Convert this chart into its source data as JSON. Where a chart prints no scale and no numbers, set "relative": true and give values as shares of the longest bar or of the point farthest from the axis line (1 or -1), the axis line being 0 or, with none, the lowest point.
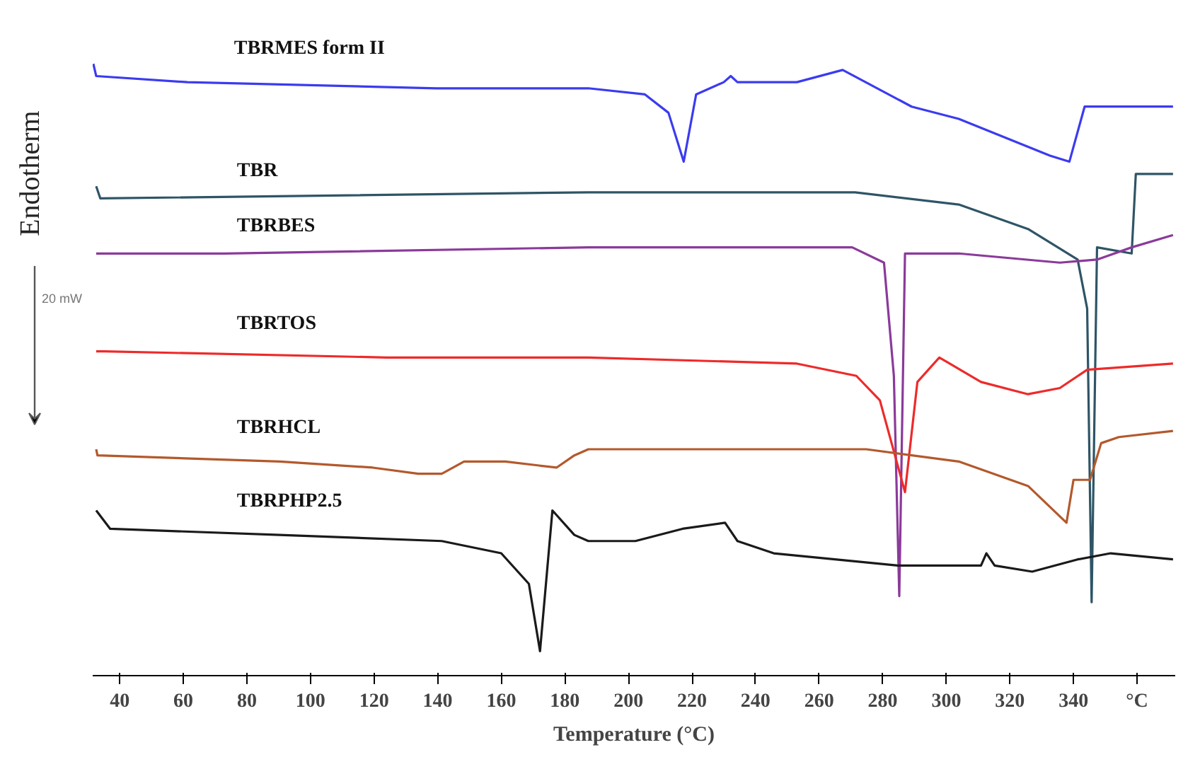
{
  "chart_data": {
    "type": "line",
    "relative": true,
    "xlabel": "Temperature (°C)",
    "ylabel": "Endotherm",
    "annotations": [
      "20 mW"
    ],
    "xlim": [
      31.5,
      372
    ],
    "xticks": [
      40,
      60,
      80,
      100,
      120,
      140,
      160,
      180,
      200,
      220,
      240,
      260,
      280,
      300,
      320,
      340,
      {
        "value": 360,
        "label": "°C"
      }
    ],
    "line_style": "solid",
    "series": [
      {
        "name": "TBRMES form II",
        "color": "#3b3bf0",
        "x": [
          31.7,
          32.6,
          61.3,
          139.6,
          187.4,
          205.2,
          212.6,
          217.4,
          221.3,
          230,
          232.2,
          234.3,
          253,
          267.4,
          289.1,
          303.9,
          332.6,
          338.7,
          343.5,
          354.3,
          371.3
        ],
        "values": [
          1.0,
          0.98,
          0.97,
          0.96,
          0.96,
          0.95,
          0.92,
          0.84,
          0.95,
          0.97,
          0.98,
          0.97,
          0.97,
          0.99,
          0.93,
          0.91,
          0.85,
          0.84,
          0.93,
          0.93,
          0.93
        ]
      },
      {
        "name": "TBR",
        "color": "#2e5566",
        "x": [
          32.6,
          33.9,
          187.4,
          271.3,
          303.9,
          325.7,
          341.3,
          344.3,
          345.7,
          347.4,
          358.3,
          359.6,
          371.3
        ],
        "values": [
          0.8,
          0.78,
          0.79,
          0.79,
          0.77,
          0.73,
          0.68,
          0.6,
          0.12,
          0.7,
          0.69,
          0.82,
          0.82
        ]
      },
      {
        "name": "TBRBES",
        "color": "#8b3a9a",
        "x": [
          32.6,
          39.6,
          73,
          187.4,
          270.4,
          280.4,
          283.5,
          285.2,
          287,
          303.9,
          335.7,
          347.4,
          358.3,
          371.3
        ],
        "values": [
          0.69,
          0.69,
          0.69,
          0.7,
          0.7,
          0.675,
          0.49,
          0.13,
          0.69,
          0.69,
          0.675,
          0.68,
          0.7,
          0.72
        ]
      },
      {
        "name": "TBRTOS",
        "color": "#ee2a2a",
        "x": [
          32.6,
          35.2,
          123.9,
          187.4,
          253,
          271.7,
          279.1,
          287,
          290.9,
          297.8,
          310.9,
          325.7,
          335.7,
          344.3,
          371.3
        ],
        "values": [
          0.53,
          0.53,
          0.52,
          0.52,
          0.51,
          0.49,
          0.45,
          0.3,
          0.48,
          0.52,
          0.48,
          0.46,
          0.47,
          0.5,
          0.51
        ]
      },
      {
        "name": "TBRHCL",
        "color": "#b3592c",
        "x": [
          32.6,
          33,
          90.4,
          119.6,
          133.9,
          141.3,
          148.3,
          161.3,
          177.4,
          183,
          187.4,
          202.2,
          274.8,
          303.9,
          325.7,
          337.8,
          340,
          345.2,
          348.7,
          354.3,
          371.3
        ],
        "values": [
          0.37,
          0.36,
          0.35,
          0.34,
          0.33,
          0.33,
          0.35,
          0.35,
          0.34,
          0.36,
          0.37,
          0.37,
          0.37,
          0.35,
          0.31,
          0.25,
          0.32,
          0.32,
          0.38,
          0.39,
          0.4
        ]
      },
      {
        "name": "TBRPHP2.5",
        "color": "#1a1a1a",
        "x": [
          32.6,
          37,
          90.4,
          141.3,
          160,
          168.7,
          172.2,
          176.1,
          183,
          187.4,
          202.2,
          217,
          230.4,
          234.3,
          245.7,
          284.8,
          310.9,
          312.6,
          315.2,
          327,
          341.3,
          351.7,
          371.3
        ],
        "values": [
          0.27,
          0.24,
          0.23,
          0.22,
          0.2,
          0.15,
          0.04,
          0.27,
          0.23,
          0.22,
          0.22,
          0.24,
          0.25,
          0.22,
          0.2,
          0.18,
          0.18,
          0.2,
          0.18,
          0.17,
          0.19,
          0.2,
          0.19
        ]
      }
    ]
  }
}
